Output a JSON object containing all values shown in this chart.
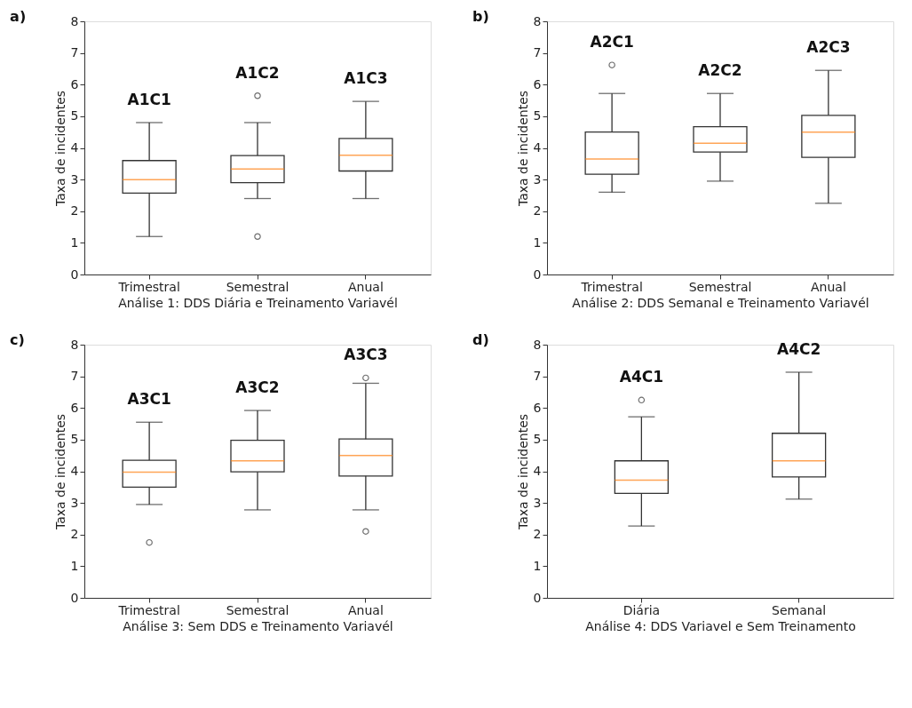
{
  "chart_data": [
    {
      "type": "box",
      "title": "a)",
      "xlabel": "Análise 1: DDS Diária e Treinamento Variavél",
      "ylabel": "Taxa de incidentes",
      "categories": [
        "Trimestral",
        "Semestral",
        "Anual"
      ],
      "ylim": [
        0,
        8
      ],
      "yticks": [
        0,
        1,
        2,
        3,
        4,
        5,
        6,
        7,
        8
      ],
      "grid": false,
      "boxes": [
        {
          "low": 1.2,
          "q1": 2.57,
          "median": 3.0,
          "q3": 3.6,
          "high": 4.8
        },
        {
          "low": 2.4,
          "q1": 2.9,
          "median": 3.33,
          "q3": 3.76,
          "high": 4.8,
          "outliers": [
            5.65,
            1.2
          ]
        },
        {
          "low": 2.4,
          "q1": 3.27,
          "median": 3.77,
          "q3": 4.3,
          "high": 5.47
        }
      ],
      "annotations": [
        "A1C1",
        "A1C2",
        "A1C3"
      ]
    },
    {
      "type": "box",
      "title": "b)",
      "xlabel": "Análise 2: DDS Semanal e Treinamento Variavél",
      "ylabel": "Taxa de incidentes",
      "categories": [
        "Trimestral",
        "Semestral",
        "Anual"
      ],
      "ylim": [
        0,
        8
      ],
      "yticks": [
        0,
        1,
        2,
        3,
        4,
        5,
        6,
        7,
        8
      ],
      "grid": false,
      "boxes": [
        {
          "low": 2.6,
          "q1": 3.17,
          "median": 3.65,
          "q3": 4.5,
          "high": 5.72,
          "outliers": [
            6.62
          ]
        },
        {
          "low": 2.95,
          "q1": 3.87,
          "median": 4.15,
          "q3": 4.67,
          "high": 5.72
        },
        {
          "low": 2.25,
          "q1": 3.7,
          "median": 4.5,
          "q3": 5.03,
          "high": 6.45
        }
      ],
      "annotations": [
        "A2C1",
        "A2C2",
        "A2C3"
      ]
    },
    {
      "type": "box",
      "title": "c)",
      "xlabel": "Análise 3: Sem DDS e Treinamento Variavél",
      "ylabel": "Taxa de incidentes",
      "categories": [
        "Trimestral",
        "Semestral",
        "Anual"
      ],
      "ylim": [
        0,
        8
      ],
      "yticks": [
        0,
        1,
        2,
        3,
        4,
        5,
        6,
        7,
        8
      ],
      "grid": false,
      "boxes": [
        {
          "low": 2.95,
          "q1": 3.5,
          "median": 3.97,
          "q3": 4.35,
          "high": 5.55,
          "outliers": [
            1.75
          ]
        },
        {
          "low": 2.78,
          "q1": 3.98,
          "median": 4.33,
          "q3": 4.98,
          "high": 5.92
        },
        {
          "low": 2.78,
          "q1": 3.85,
          "median": 4.5,
          "q3": 5.02,
          "high": 6.78,
          "outliers": [
            6.95,
            2.1
          ]
        }
      ],
      "annotations": [
        "A3C1",
        "A3C2",
        "A3C3"
      ]
    },
    {
      "type": "box",
      "title": "d)",
      "xlabel": "Análise 4: DDS Variavel e Sem Treinamento",
      "ylabel": "Taxa de incidentes",
      "categories": [
        "Diária",
        "Semanal"
      ],
      "ylim": [
        0,
        8
      ],
      "yticks": [
        0,
        1,
        2,
        3,
        4,
        5,
        6,
        7,
        8
      ],
      "grid": false,
      "boxes": [
        {
          "low": 2.27,
          "q1": 3.3,
          "median": 3.72,
          "q3": 4.33,
          "high": 5.72,
          "outliers": [
            6.25
          ]
        },
        {
          "low": 3.12,
          "q1": 3.82,
          "median": 4.33,
          "q3": 5.2,
          "high": 7.13
        }
      ],
      "annotations": [
        "A4C1",
        "A4C2"
      ]
    }
  ]
}
